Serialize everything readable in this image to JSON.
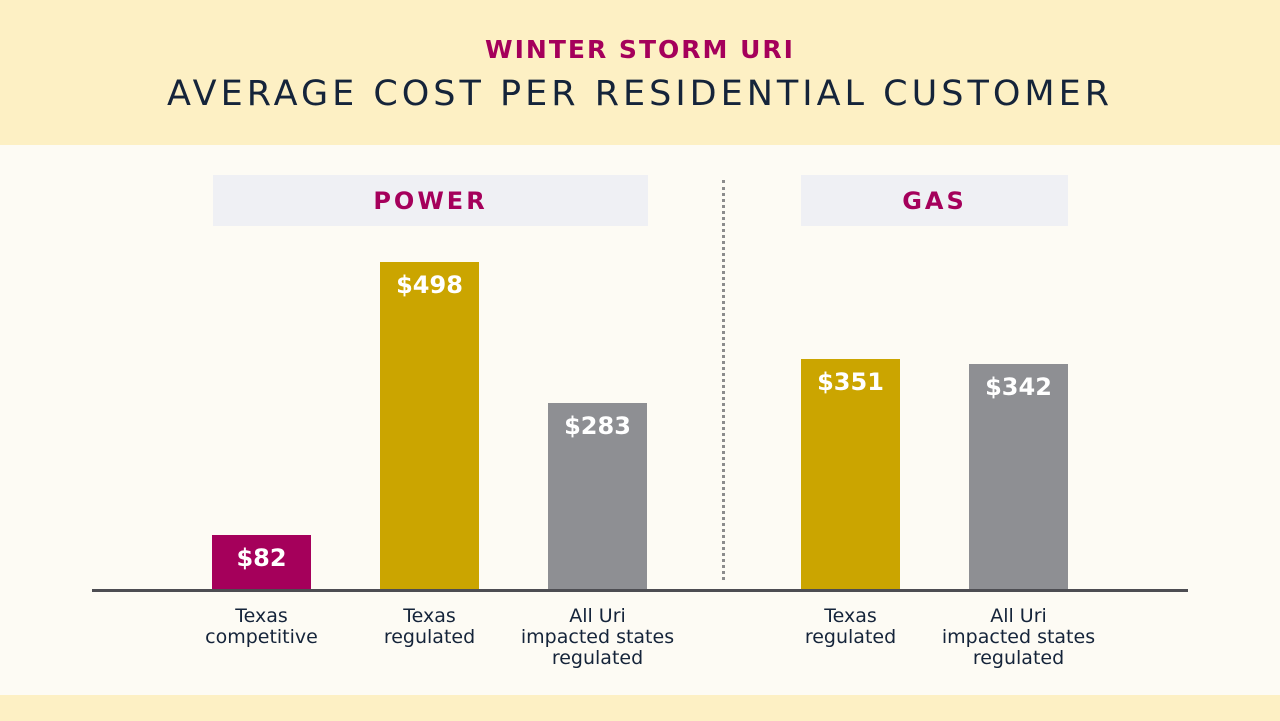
{
  "header": {
    "kicker": "WINTER STORM URI",
    "title": "AVERAGE COST PER RESIDENTIAL CUSTOMER"
  },
  "sections": {
    "power": "POWER",
    "gas": "GAS"
  },
  "colors": {
    "competitive": "#a5005b",
    "texas_regulated": "#cba500",
    "all_uri": "#8e8f93",
    "header_bg": "#fdf0c4",
    "accent": "#a5005b"
  },
  "chart_data": {
    "type": "bar",
    "title": "AVERAGE COST PER RESIDENTIAL CUSTOMER",
    "subtitle": "WINTER STORM URI",
    "xlabel": "",
    "ylabel": "",
    "ylim": [
      0,
      550
    ],
    "grid": false,
    "groups": [
      {
        "name": "POWER",
        "categories": [
          "Texas\ncompetitive",
          "Texas\nregulated",
          "All Uri\nimpacted states\nregulated"
        ],
        "values": [
          82,
          498,
          283
        ],
        "value_labels": [
          "$82",
          "$498",
          "$283"
        ],
        "colors": [
          "#a5005b",
          "#cba500",
          "#8e8f93"
        ]
      },
      {
        "name": "GAS",
        "categories": [
          "Texas\nregulated",
          "All Uri\nimpacted states\nregulated"
        ],
        "values": [
          351,
          342
        ],
        "value_labels": [
          "$351",
          "$342"
        ],
        "colors": [
          "#cba500",
          "#8e8f93"
        ]
      }
    ]
  }
}
